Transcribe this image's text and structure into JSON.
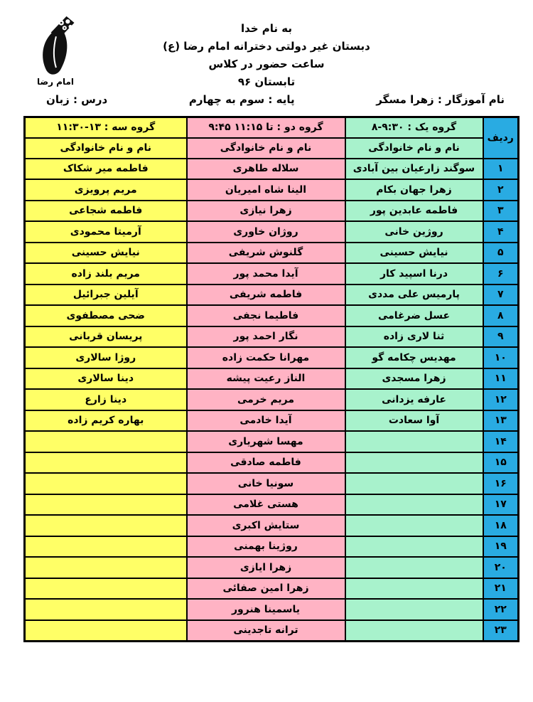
{
  "header": {
    "bismillah": "به نام خدا",
    "school_name": "دبستان غیر دولتی دخترانه امام رضا (ع)",
    "subtitle": "ساعت حضور در کلاس",
    "term": "تابستان ۹۶",
    "teacher": "نام آموزگار : زهرا مسگر",
    "grade": "پایه : سوم به چهارم",
    "subject": "درس : زبان",
    "logo_caption": "امام رضا"
  },
  "colors": {
    "row_no_column": "#29abe2",
    "group1_column": "#a8f2cc",
    "group2_column": "#ffb3c4",
    "group3_column": "#ffff66",
    "border": "#000000"
  },
  "table": {
    "row_no_header": "ردیف",
    "name_header": "نام و نام خانوادگی",
    "group1_header": "گروه یک : ⁦۸-۹:۳۰⁩",
    "group2_header": "گروه دو : ⁦۹:۴۵ تا ۱۱:۱۵⁩",
    "group3_header": "گروه سه : ⁦۱۱:۳۰-۱۳⁩",
    "rows": [
      {
        "no": "۱",
        "g1": "سوگند زارعیان بین آبادی",
        "g2": "سلاله طاهری",
        "g3": "فاطمه میر شکاک"
      },
      {
        "no": "۲",
        "g1": "زهرا جهان بکام",
        "g2": "الینا شاه امیریان",
        "g3": "مریم پرویزی"
      },
      {
        "no": "۳",
        "g1": "فاطمه عابدین پور",
        "g2": "زهرا نیازی",
        "g3": "فاطمه شجاعی"
      },
      {
        "no": "۴",
        "g1": "روژین خانی",
        "g2": "روژان خاوری",
        "g3": "آرمیتا محمودی"
      },
      {
        "no": "۵",
        "g1": "نیایش حسینی",
        "g2": "گلنوش شریفی",
        "g3": "نیایش حسینی"
      },
      {
        "no": "۶",
        "g1": "درنا اسپید کار",
        "g2": "آیدا محمد پور",
        "g3": "مریم بلند زاده"
      },
      {
        "no": "۷",
        "g1": "پارمیس علی مددی",
        "g2": "فاطمه شریفی",
        "g3": "آیلین جبرائیل"
      },
      {
        "no": "۸",
        "g1": "عسل ضرغامی",
        "g2": "فاطیما نجفی",
        "g3": "ضحی مصطفوی"
      },
      {
        "no": "۹",
        "g1": "ثنا لاری زاده",
        "g2": "نگار احمد پور",
        "g3": "پریسان قربانی"
      },
      {
        "no": "۱۰",
        "g1": "مهدیس چکامه گو",
        "g2": "مهرانا حکمت زاده",
        "g3": "روژا سالاری"
      },
      {
        "no": "۱۱",
        "g1": "زهرا مسجدی",
        "g2": "الناز رعیت پیشه",
        "g3": "دینا سالاری"
      },
      {
        "no": "۱۲",
        "g1": "عارفه یزدانی",
        "g2": "مریم خرمی",
        "g3": "دینا زارع"
      },
      {
        "no": "۱۳",
        "g1": "آوا سعادت",
        "g2": "آیدا خادمی",
        "g3": "بهاره کریم زاده"
      },
      {
        "no": "۱۴",
        "g1": "",
        "g2": "مهسا شهریاری",
        "g3": ""
      },
      {
        "no": "۱۵",
        "g1": "",
        "g2": "فاطمه صادقی",
        "g3": ""
      },
      {
        "no": "۱۶",
        "g1": "",
        "g2": "سونیا خانی",
        "g3": ""
      },
      {
        "no": "۱۷",
        "g1": "",
        "g2": "هستی غلامی",
        "g3": ""
      },
      {
        "no": "۱۸",
        "g1": "",
        "g2": "ستایش اکبری",
        "g3": ""
      },
      {
        "no": "۱۹",
        "g1": "",
        "g2": "روژینا بهمنی",
        "g3": ""
      },
      {
        "no": "۲۰",
        "g1": "",
        "g2": "زهرا ایازی",
        "g3": ""
      },
      {
        "no": "۲۱",
        "g1": "",
        "g2": "زهرا امین صفائی",
        "g3": ""
      },
      {
        "no": "۲۲",
        "g1": "",
        "g2": "یاسمینا هنرور",
        "g3": ""
      },
      {
        "no": "۲۳",
        "g1": "",
        "g2": "ترانه تاجدینی",
        "g3": ""
      }
    ]
  }
}
